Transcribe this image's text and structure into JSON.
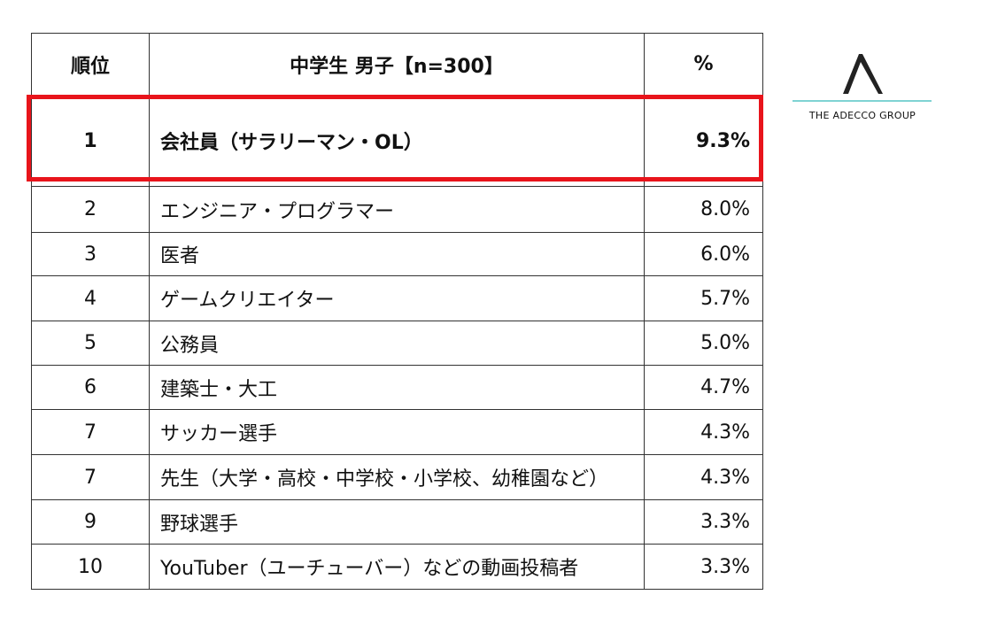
{
  "table": {
    "header": [
      "順位",
      "中学生 男子【n=300】",
      "%"
    ],
    "rows": [
      [
        "1",
        "会社員（サラリーマン・OL）",
        "9.3%"
      ],
      [
        "2",
        "エンジニア・プログラマー",
        "8.0%"
      ],
      [
        "3",
        "医者",
        "6.0%"
      ],
      [
        "4",
        "ゲームクリエイター",
        "5.7%"
      ],
      [
        "5",
        "公務員",
        "5.0%"
      ],
      [
        "6",
        "建築士・大工",
        "4.7%"
      ],
      [
        "7",
        "サッカー選手",
        "4.3%"
      ],
      [
        "7",
        "先生（大学・高校・中学校・小学校、幼稚園など）",
        "4.3%"
      ],
      [
        "9",
        "野球選手",
        "3.3%"
      ],
      [
        "10",
        "YouTuber（ユーチューバー）などの動画投稿者",
        "3.3%"
      ]
    ]
  },
  "logo": {
    "text": "THE ADECCO GROUP"
  }
}
